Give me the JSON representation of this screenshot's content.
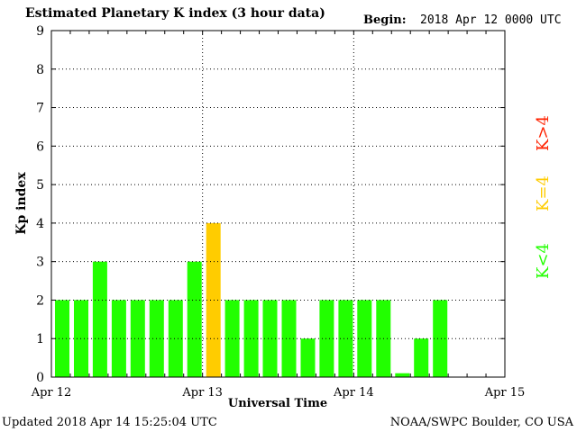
{
  "header": {
    "title": "Estimated Planetary K index (3 hour data)",
    "begin_label": "Begin:",
    "begin_value": "2018 Apr 12 0000 UTC"
  },
  "footer": {
    "updated": "Updated 2018 Apr 14 15:25:04 UTC",
    "source": "NOAA/SWPC Boulder, CO USA"
  },
  "colors": {
    "below4": "#22ff00",
    "equal4": "#ffcc00",
    "above4": "#ff2200",
    "grid": "#000000"
  },
  "chart_data": {
    "type": "bar",
    "title": "Estimated Planetary K index (3 hour data)",
    "xlabel": "Universal Time",
    "ylabel": "Kp index",
    "ylim": [
      0,
      9
    ],
    "yticks": [
      "0",
      "1",
      "2",
      "3",
      "4",
      "5",
      "6",
      "7",
      "8",
      "9"
    ],
    "xticks": [
      "Apr 12",
      "Apr 13",
      "Apr 14",
      "Apr 15"
    ],
    "interval_hours": 3,
    "grid": true,
    "values": [
      2,
      2,
      3,
      2,
      2,
      2,
      2,
      3,
      4,
      2,
      2,
      2,
      2,
      1,
      2,
      2,
      2,
      2,
      0.1,
      1,
      2
    ],
    "legend": [
      {
        "label": "K<4",
        "color": "#22ff00"
      },
      {
        "label": "K=4",
        "color": "#ffcc00"
      },
      {
        "label": "K>4",
        "color": "#ff2200"
      }
    ]
  }
}
